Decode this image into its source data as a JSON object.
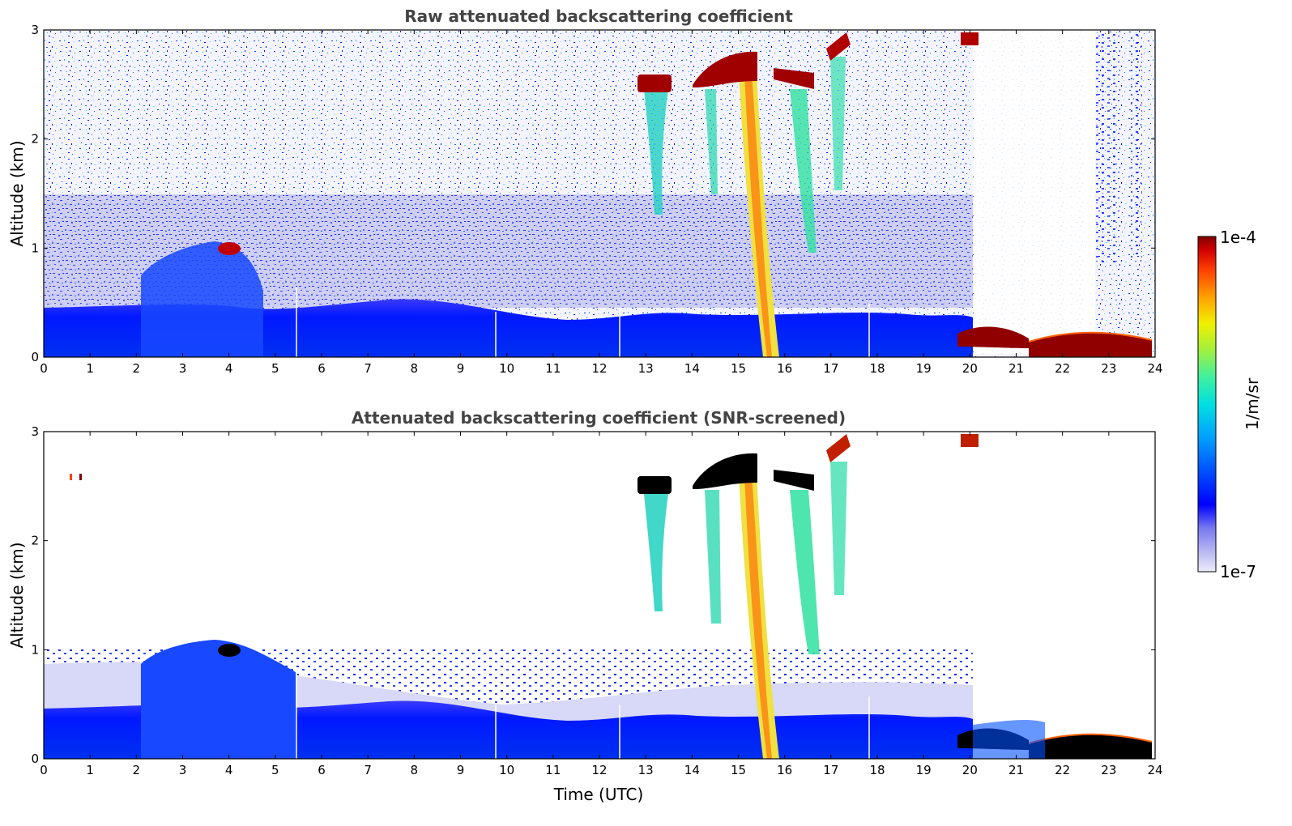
{
  "chart_data": [
    {
      "type": "heatmap",
      "title": "Raw attenuated backscattering coefficient",
      "xlabel": "",
      "ylabel": "Altitude (km)",
      "xlim": [
        0,
        24
      ],
      "ylim": [
        0,
        3
      ],
      "x_ticks": [
        "0",
        "1",
        "2",
        "3",
        "4",
        "5",
        "6",
        "7",
        "8",
        "9",
        "10",
        "11",
        "12",
        "13",
        "14",
        "15",
        "16",
        "17",
        "18",
        "19",
        "20",
        "21",
        "22",
        "23",
        "24"
      ],
      "y_ticks": [
        "0",
        "1",
        "2",
        "3"
      ],
      "features": [
        {
          "kind": "boundary-layer",
          "x_range": [
            0,
            20
          ],
          "top_km": 0.4,
          "level": "blue"
        },
        {
          "kind": "aerosol-hump",
          "x_range": [
            2.1,
            4.6
          ],
          "top_km": 0.95,
          "level": "blue"
        },
        {
          "kind": "cloud",
          "x": 4.0,
          "y_km": 0.98,
          "level": "dark-red"
        },
        {
          "kind": "cloud-layer",
          "x_range": [
            12.9,
            13.5
          ],
          "y_km": 2.5,
          "level": "dark-red"
        },
        {
          "kind": "cloud-layer",
          "x_range": [
            14.0,
            15.4
          ],
          "y_km": 2.65,
          "level": "dark-red"
        },
        {
          "kind": "cloud-layer",
          "x_range": [
            15.7,
            16.7
          ],
          "y_km": 2.55,
          "level": "dark-red"
        },
        {
          "kind": "cloud-layer",
          "x_range": [
            16.9,
            17.4
          ],
          "y_km": 2.85,
          "level": "dark-red"
        },
        {
          "kind": "precipitation-streak",
          "x_range": [
            15.1,
            15.6
          ],
          "y_range": [
            0,
            2.6
          ]
        },
        {
          "kind": "low-cloud",
          "x_range": [
            20.0,
            24.0
          ],
          "y_km": 0.12,
          "level": "dark-red"
        }
      ]
    },
    {
      "type": "heatmap",
      "title": "Attenuated backscattering coefficient (SNR-screened)",
      "xlabel": "Time (UTC)",
      "ylabel": "Altitude (km)",
      "xlim": [
        0,
        24
      ],
      "ylim": [
        0,
        3
      ],
      "x_ticks": [
        "0",
        "1",
        "2",
        "3",
        "4",
        "5",
        "6",
        "7",
        "8",
        "9",
        "10",
        "11",
        "12",
        "13",
        "14",
        "15",
        "16",
        "17",
        "18",
        "19",
        "20",
        "21",
        "22",
        "23",
        "24"
      ],
      "y_ticks": [
        "0",
        "1",
        "2",
        "3"
      ],
      "features": [
        {
          "kind": "boundary-layer",
          "x_range": [
            0,
            20
          ],
          "top_km": 0.45,
          "level": "blue"
        },
        {
          "kind": "screened-noise",
          "x_range": [
            0,
            20
          ],
          "y_range": [
            0.5,
            1.0
          ],
          "level": "light-blue"
        },
        {
          "kind": "cloud",
          "x": 4.0,
          "y_km": 0.98,
          "level": "black"
        },
        {
          "kind": "cloud-layer",
          "x_range": [
            12.9,
            13.5
          ],
          "y_km": 2.5,
          "level": "black"
        },
        {
          "kind": "cloud-layer",
          "x_range": [
            14.0,
            15.4
          ],
          "y_km": 2.65,
          "level": "black"
        },
        {
          "kind": "cloud-layer",
          "x_range": [
            15.7,
            16.7
          ],
          "y_km": 2.55,
          "level": "black"
        },
        {
          "kind": "low-cloud",
          "x_range": [
            20.0,
            24.0
          ],
          "y_km": 0.12,
          "level": "black"
        }
      ]
    }
  ],
  "colorbar": {
    "label": "1/m/sr",
    "max_label": "1e-4",
    "min_label": "1e-7",
    "scale": "log",
    "colors": [
      "#ececfa",
      "#b8b8f2",
      "#7878f0",
      "#0000ff",
      "#0050ff",
      "#00a0ff",
      "#00e0e0",
      "#40f0a0",
      "#a0f040",
      "#f0f000",
      "#ffa000",
      "#ff4000",
      "#d00000",
      "#800000"
    ]
  }
}
